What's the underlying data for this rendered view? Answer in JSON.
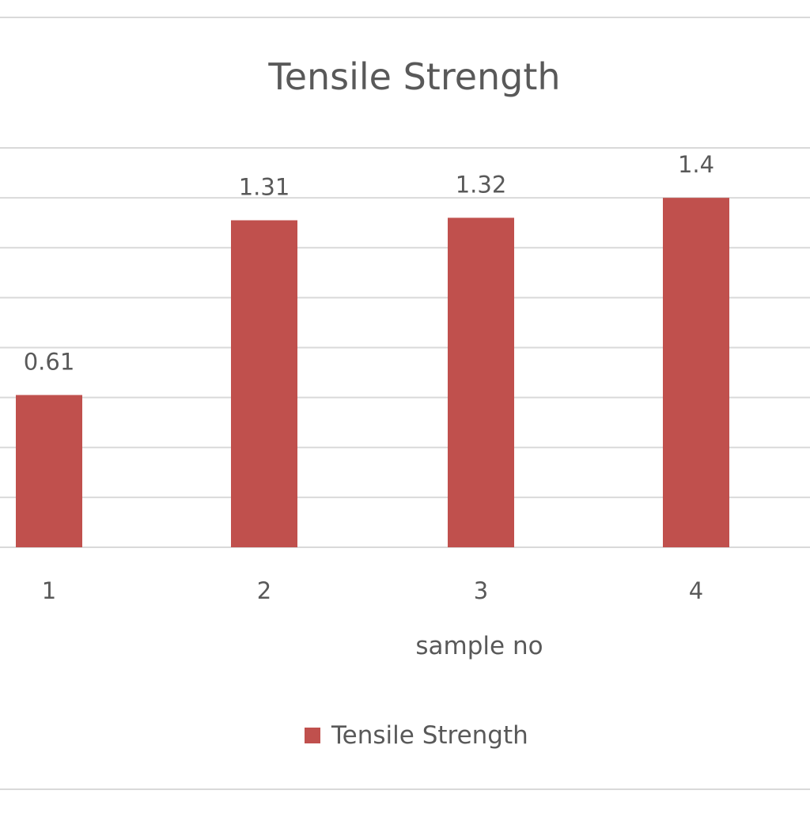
{
  "chart_data": {
    "type": "bar",
    "title": "Tensile Strength",
    "xlabel": "sample no",
    "ylabel": "",
    "categories": [
      "1",
      "2",
      "3",
      "4"
    ],
    "series": [
      {
        "name": "Tensile Strength",
        "values": [
          0.61,
          1.31,
          1.32,
          1.4
        ],
        "data_labels": [
          "0.61",
          "1.31",
          "1.32",
          "1.4"
        ],
        "color": "#c0504d"
      }
    ],
    "ylim": [
      0,
      1.6
    ],
    "grid": true,
    "legend": "bottom",
    "colors": {
      "gridline": "#d9d9d9",
      "text": "#595959",
      "border": "#d9d9d9"
    }
  }
}
